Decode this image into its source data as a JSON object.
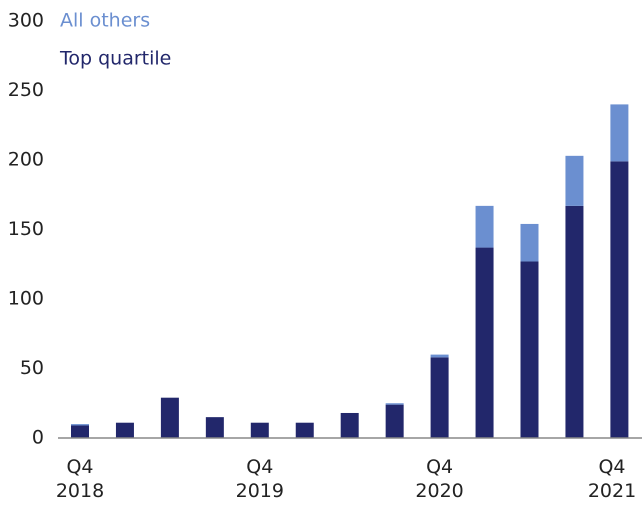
{
  "chart_data": {
    "type": "stacked_bar",
    "categories": [
      "Q4 2018",
      null,
      null,
      null,
      "Q4 2019",
      null,
      null,
      null,
      "Q4 2020",
      null,
      null,
      null,
      "Q4 2021"
    ],
    "series": [
      {
        "name": "Top quartile",
        "color": "#22276b",
        "values": [
          9,
          11,
          29,
          15,
          11,
          11,
          18,
          24,
          58,
          137,
          127,
          167,
          199
        ]
      },
      {
        "name": "All others",
        "color": "#6b8fd0",
        "values": [
          1,
          0,
          0,
          0,
          0,
          0,
          0,
          1,
          2,
          30,
          27,
          36,
          41
        ]
      }
    ],
    "ylim": [
      0,
      300
    ],
    "yticks": [
      0,
      50,
      100,
      150,
      200,
      250,
      300
    ],
    "grid": false
  }
}
